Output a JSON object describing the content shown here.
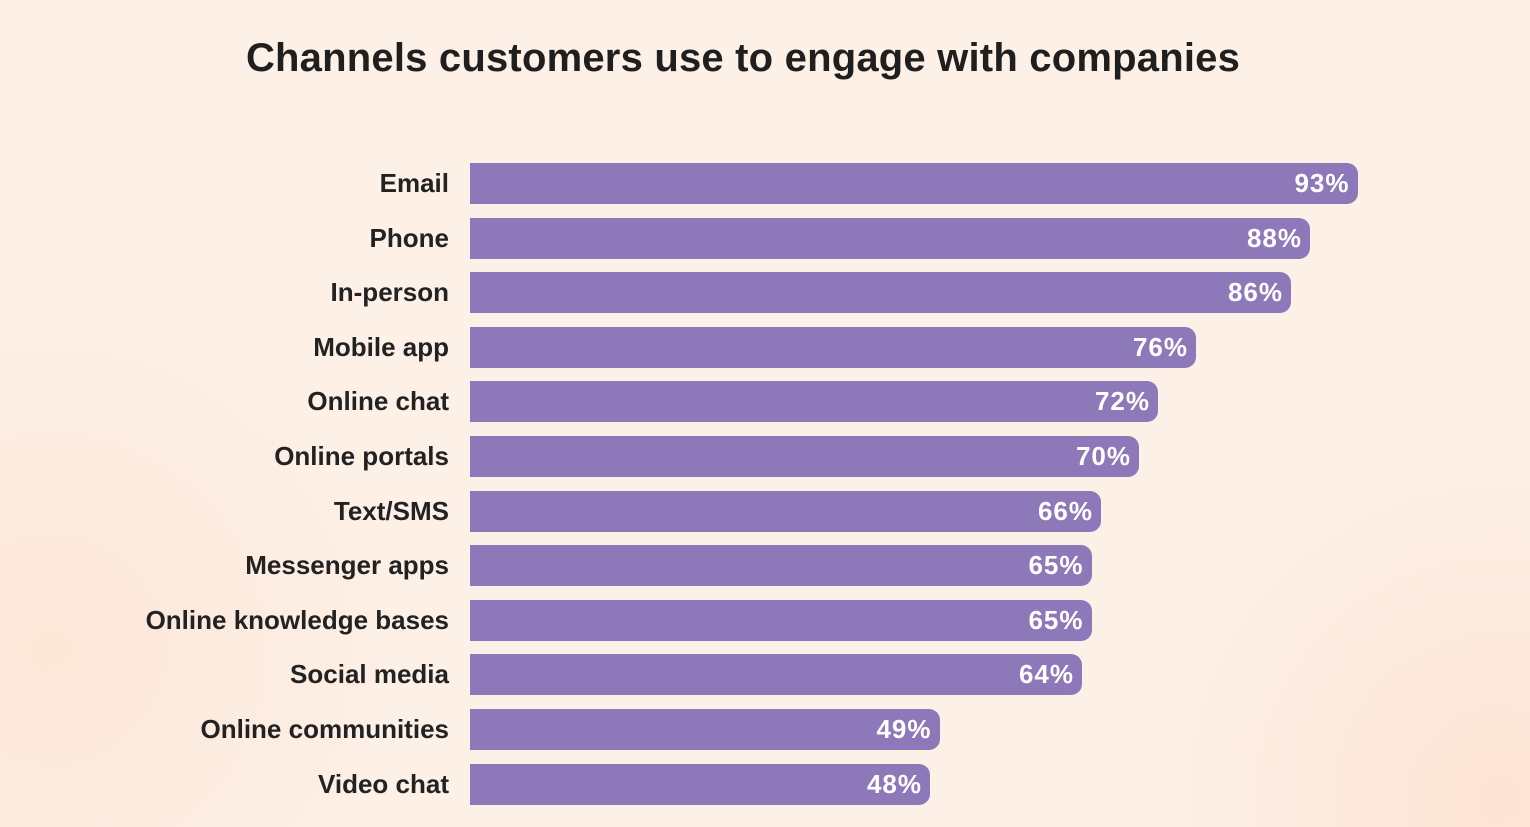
{
  "chart_data": {
    "type": "bar",
    "orientation": "horizontal",
    "title": "Channels customers use to engage with companies",
    "categories": [
      "Email",
      "Phone",
      "In-person",
      "Mobile app",
      "Online chat",
      "Online portals",
      "Text/SMS",
      "Messenger apps",
      "Online knowledge bases",
      "Social media",
      "Online communities",
      "Video chat"
    ],
    "values": [
      93,
      88,
      86,
      76,
      72,
      70,
      66,
      65,
      65,
      64,
      49,
      48
    ],
    "value_labels": [
      "93%",
      "88%",
      "86%",
      "76%",
      "72%",
      "70%",
      "66%",
      "65%",
      "65%",
      "64%",
      "49%",
      "48%"
    ],
    "xlim": [
      0,
      100
    ],
    "grid": false,
    "bar_color": "#8d78ba",
    "background_color": "#fdf0e6"
  }
}
